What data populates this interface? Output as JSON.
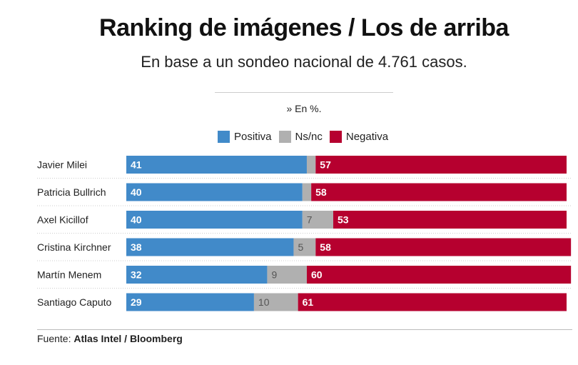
{
  "title": "Ranking de imágenes / Los de arriba",
  "subtitle": "En base a un sondeo nacional de 4.761 casos.",
  "unit_note": "» En %.",
  "footer": {
    "label": "Fuente:",
    "source": "Atlas Intel / Bloomberg"
  },
  "chart_data": {
    "type": "bar",
    "orientation": "horizontal",
    "stacked": true,
    "legend_position": "top",
    "categories": [
      "Javier Milei",
      "Patricia Bullrich",
      "Axel Kicillof",
      "Cristina Kirchner",
      "Martín Menem",
      "Santiago Caputo"
    ],
    "series": [
      {
        "name": "Positiva",
        "color": "#418ac9",
        "values": [
          41,
          40,
          40,
          38,
          32,
          29
        ],
        "labels": [
          "41",
          "40",
          "40",
          "38",
          "32",
          "29"
        ]
      },
      {
        "name": "Ns/nc",
        "color": "#b0b0b0",
        "values": [
          2,
          2,
          7,
          5,
          9,
          10
        ],
        "labels": [
          "",
          "",
          "7",
          "5",
          "9",
          "10"
        ]
      },
      {
        "name": "Negativa",
        "color": "#b6002f",
        "values": [
          57,
          58,
          53,
          58,
          60,
          61
        ],
        "labels": [
          "57",
          "58",
          "53",
          "58",
          "60",
          "61"
        ]
      }
    ]
  }
}
